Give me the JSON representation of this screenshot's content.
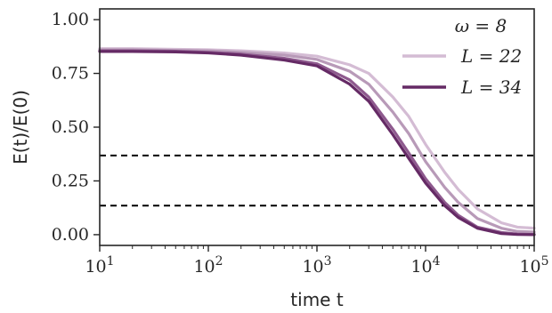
{
  "chart_data": {
    "type": "line",
    "xlabel": "time t",
    "ylabel": "E(t)/E(0)",
    "xscale": "log",
    "xlim": [
      10,
      100000
    ],
    "ylim": [
      -0.05,
      1.05
    ],
    "x_ticks": [
      10,
      100,
      1000,
      10000,
      100000
    ],
    "x_tick_labels": [
      {
        "base": "10",
        "exp": "1"
      },
      {
        "base": "10",
        "exp": "2"
      },
      {
        "base": "10",
        "exp": "3"
      },
      {
        "base": "10",
        "exp": "4"
      },
      {
        "base": "10",
        "exp": "5"
      }
    ],
    "y_ticks": [
      0.0,
      0.25,
      0.5,
      0.75,
      1.0
    ],
    "y_tick_labels": [
      "0.00",
      "0.25",
      "0.50",
      "0.75",
      "1.00"
    ],
    "grid": false,
    "legend": {
      "title": "ω = 8",
      "position": "top-right",
      "entries": [
        "L = 22",
        "L = 34"
      ]
    },
    "reference_lines": [
      {
        "y": 0.368,
        "style": "dashed",
        "color": "#000000"
      },
      {
        "y": 0.135,
        "style": "dashed",
        "color": "#000000"
      }
    ],
    "series": [
      {
        "name": "L = 22",
        "color": "#d4bcd4",
        "x": [
          10,
          20,
          50,
          100,
          200,
          500,
          1000,
          2000,
          3000,
          5000,
          7000,
          10000,
          15000,
          20000,
          30000,
          50000,
          70000,
          100000
        ],
        "y": [
          0.865,
          0.865,
          0.862,
          0.86,
          0.855,
          0.845,
          0.83,
          0.79,
          0.75,
          0.64,
          0.55,
          0.42,
          0.29,
          0.21,
          0.12,
          0.055,
          0.035,
          0.03
        ]
      },
      {
        "name": "",
        "color": "#b89ab8",
        "x": [
          10,
          20,
          50,
          100,
          200,
          500,
          1000,
          2000,
          3000,
          5000,
          7000,
          10000,
          15000,
          20000,
          30000,
          50000,
          70000,
          100000
        ],
        "y": [
          0.86,
          0.86,
          0.857,
          0.855,
          0.848,
          0.835,
          0.815,
          0.76,
          0.7,
          0.57,
          0.47,
          0.34,
          0.22,
          0.15,
          0.075,
          0.03,
          0.015,
          0.012
        ]
      },
      {
        "name": "",
        "color": "#8e5a8e",
        "x": [
          10,
          20,
          50,
          100,
          200,
          500,
          1000,
          2000,
          3000,
          5000,
          7000,
          10000,
          15000,
          20000,
          30000,
          50000,
          70000,
          100000
        ],
        "y": [
          0.855,
          0.855,
          0.853,
          0.848,
          0.84,
          0.82,
          0.795,
          0.72,
          0.64,
          0.49,
          0.38,
          0.26,
          0.15,
          0.09,
          0.035,
          0.01,
          0.003,
          0.001
        ]
      },
      {
        "name": "L = 34",
        "color": "#652a65",
        "x": [
          10,
          20,
          50,
          100,
          200,
          500,
          1000,
          2000,
          3000,
          5000,
          7000,
          10000,
          15000,
          20000,
          30000,
          50000,
          70000,
          100000
        ],
        "y": [
          0.852,
          0.852,
          0.85,
          0.845,
          0.835,
          0.812,
          0.785,
          0.7,
          0.62,
          0.465,
          0.355,
          0.24,
          0.135,
          0.08,
          0.03,
          0.005,
          0.001,
          0.0
        ]
      }
    ]
  }
}
